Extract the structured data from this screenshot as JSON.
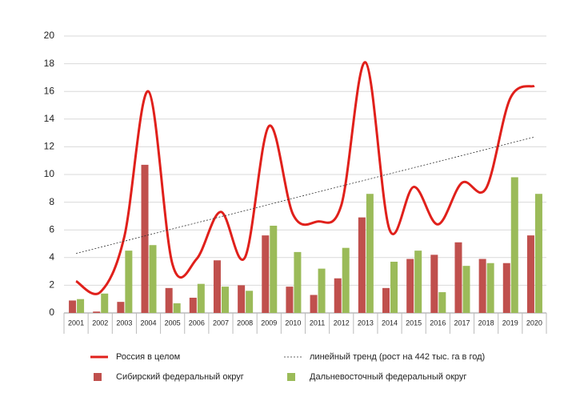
{
  "chart_data": {
    "type": "bar",
    "categories": [
      "2001",
      "2002",
      "2003",
      "2004",
      "2005",
      "2006",
      "2007",
      "2008",
      "2009",
      "2010",
      "2011",
      "2012",
      "2013",
      "2014",
      "2015",
      "2016",
      "2017",
      "2018",
      "2019",
      "2020"
    ],
    "series": [
      {
        "name": "Россия в целом",
        "type": "line",
        "color": "#e0201b",
        "values": [
          2.3,
          1.5,
          5.5,
          16.0,
          3.5,
          3.9,
          7.3,
          4.0,
          13.5,
          7.1,
          6.6,
          7.8,
          18.1,
          6.0,
          9.1,
          6.4,
          9.4,
          9.0,
          15.5,
          16.4
        ]
      },
      {
        "name": "линейный тренд (рост на 442 тыс. га в год)",
        "type": "line",
        "dashed": true,
        "color": "#333333",
        "values": [
          4.3,
          4.74,
          5.18,
          5.63,
          6.07,
          6.51,
          6.95,
          7.39,
          7.84,
          8.28,
          8.72,
          9.16,
          9.6,
          10.05,
          10.49,
          10.93,
          11.37,
          11.81,
          12.26,
          12.7
        ]
      },
      {
        "name": "Сибирский федеральный округ",
        "type": "bar",
        "color": "#c0504d",
        "values": [
          0.9,
          0.1,
          0.8,
          10.7,
          1.8,
          1.1,
          3.8,
          2.0,
          5.6,
          1.9,
          1.3,
          2.5,
          6.9,
          1.8,
          3.9,
          4.2,
          5.1,
          3.9,
          3.6,
          5.6
        ]
      },
      {
        "name": "Дальневосточный федеральный округ",
        "type": "bar",
        "color": "#9bbb59",
        "values": [
          1.0,
          1.4,
          4.5,
          4.9,
          0.7,
          2.1,
          1.9,
          1.6,
          6.3,
          4.4,
          3.2,
          4.7,
          8.6,
          3.7,
          4.5,
          1.5,
          3.4,
          3.6,
          9.8,
          8.6
        ]
      }
    ],
    "ylim": [
      0,
      20
    ],
    "yticks": [
      0,
      2,
      4,
      6,
      8,
      10,
      12,
      14,
      16,
      18,
      20
    ],
    "grid": true
  }
}
